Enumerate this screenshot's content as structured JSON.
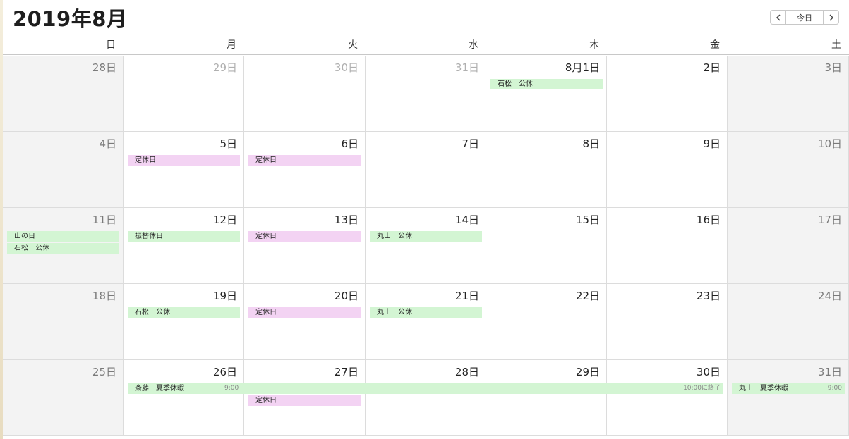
{
  "header": {
    "title": "2019年8月",
    "today_label": "今日"
  },
  "weekdays": [
    "日",
    "月",
    "火",
    "水",
    "木",
    "金",
    "土"
  ],
  "weeks": [
    [
      "28日",
      "29日",
      "30日",
      "31日",
      "8月1日",
      "2日",
      "3日"
    ],
    [
      "4日",
      "5日",
      "6日",
      "7日",
      "8日",
      "9日",
      "10日"
    ],
    [
      "11日",
      "12日",
      "13日",
      "14日",
      "15日",
      "16日",
      "17日"
    ],
    [
      "18日",
      "19日",
      "20日",
      "21日",
      "22日",
      "23日",
      "24日"
    ],
    [
      "25日",
      "26日",
      "27日",
      "28日",
      "29日",
      "30日",
      "31日"
    ]
  ],
  "outside_month_days": [
    [
      0,
      1
    ],
    [
      0,
      2
    ],
    [
      0,
      3
    ]
  ],
  "events": [
    {
      "week": 0,
      "day": 4,
      "span": 1,
      "slot": 0,
      "title": "石松　公休",
      "color": "green"
    },
    {
      "week": 1,
      "day": 1,
      "span": 1,
      "slot": 0,
      "title": "定休日",
      "color": "pink"
    },
    {
      "week": 1,
      "day": 2,
      "span": 1,
      "slot": 0,
      "title": "定休日",
      "color": "pink"
    },
    {
      "week": 2,
      "day": 0,
      "span": 1,
      "slot": 0,
      "title": "山の日",
      "color": "green"
    },
    {
      "week": 2,
      "day": 0,
      "span": 1,
      "slot": 1,
      "title": "石松　公休",
      "color": "green"
    },
    {
      "week": 2,
      "day": 1,
      "span": 1,
      "slot": 0,
      "title": "振替休日",
      "color": "green"
    },
    {
      "week": 2,
      "day": 2,
      "span": 1,
      "slot": 0,
      "title": "定休日",
      "color": "pink"
    },
    {
      "week": 2,
      "day": 3,
      "span": 1,
      "slot": 0,
      "title": "丸山　公休",
      "color": "green"
    },
    {
      "week": 3,
      "day": 1,
      "span": 1,
      "slot": 0,
      "title": "石松　公休",
      "color": "green"
    },
    {
      "week": 3,
      "day": 2,
      "span": 1,
      "slot": 0,
      "title": "定休日",
      "color": "pink"
    },
    {
      "week": 3,
      "day": 3,
      "span": 1,
      "slot": 0,
      "title": "丸山　公休",
      "color": "green"
    },
    {
      "week": 4,
      "day": 1,
      "span": 5,
      "slot": 0,
      "title": "斎藤　夏季休暇",
      "color": "green",
      "start_time": "9:00",
      "end_text": "10:00に終了"
    },
    {
      "week": 4,
      "day": 2,
      "span": 1,
      "slot": 1,
      "title": "定休日",
      "color": "pink"
    },
    {
      "week": 4,
      "day": 6,
      "span": 1,
      "slot": 0,
      "title": "丸山　夏季休暇",
      "color": "green",
      "start_time": "9:00"
    }
  ]
}
